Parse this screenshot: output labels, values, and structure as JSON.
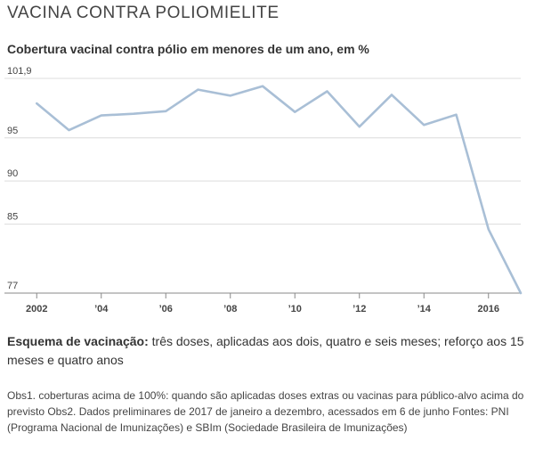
{
  "header": {
    "title": "VACINA CONTRA POLIOMIELITE"
  },
  "chart_data": {
    "type": "line",
    "title": "Cobertura vacinal contra pólio em menores de um ano, em %",
    "xlabel": "",
    "ylabel": "",
    "x": [
      2002,
      2003,
      2004,
      2005,
      2006,
      2007,
      2008,
      2009,
      2010,
      2011,
      2012,
      2013,
      2014,
      2015,
      2016,
      2017
    ],
    "series": [
      {
        "values": [
          99.0,
          95.9,
          97.6,
          97.8,
          98.1,
          100.6,
          99.9,
          101.0,
          98.0,
          100.4,
          96.3,
          100.0,
          96.5,
          97.7,
          84.4,
          77.0
        ]
      }
    ],
    "y_ticks": [
      {
        "value": 101.9,
        "label": "101,9"
      },
      {
        "value": 95,
        "label": "95"
      },
      {
        "value": 90,
        "label": "90"
      },
      {
        "value": 85,
        "label": "85"
      },
      {
        "value": 77,
        "label": "77"
      }
    ],
    "x_ticks": [
      {
        "value": 2002,
        "label": "2002"
      },
      {
        "value": 2004,
        "label": "’04"
      },
      {
        "value": 2006,
        "label": "’06"
      },
      {
        "value": 2008,
        "label": "’08"
      },
      {
        "value": 2010,
        "label": "’10"
      },
      {
        "value": 2012,
        "label": "’12"
      },
      {
        "value": 2014,
        "label": "’14"
      },
      {
        "value": 2016,
        "label": "2016"
      }
    ],
    "ylim": [
      77,
      101.9
    ],
    "xlim": [
      2001,
      2017
    ],
    "grid": "horizontal",
    "line_color": "#a9bfd6",
    "grid_color": "#dcdcdc",
    "axis_color": "#888888"
  },
  "scheme": {
    "label": "Esquema de vacinação:",
    "text": " três doses, aplicadas aos dois, quatro e seis meses; reforço aos 15 meses e quatro anos"
  },
  "notes": {
    "text": "Obs1. coberturas acima de 100%: quando são aplicadas doses extras ou vacinas para público-alvo acima do previsto Obs2. Dados preliminares de 2017 de janeiro a dezembro, acessados em 6 de junho Fontes: PNI (Programa Nacional de Imunizações) e SBIm (Sociedade Brasileira de Imunizações)"
  }
}
